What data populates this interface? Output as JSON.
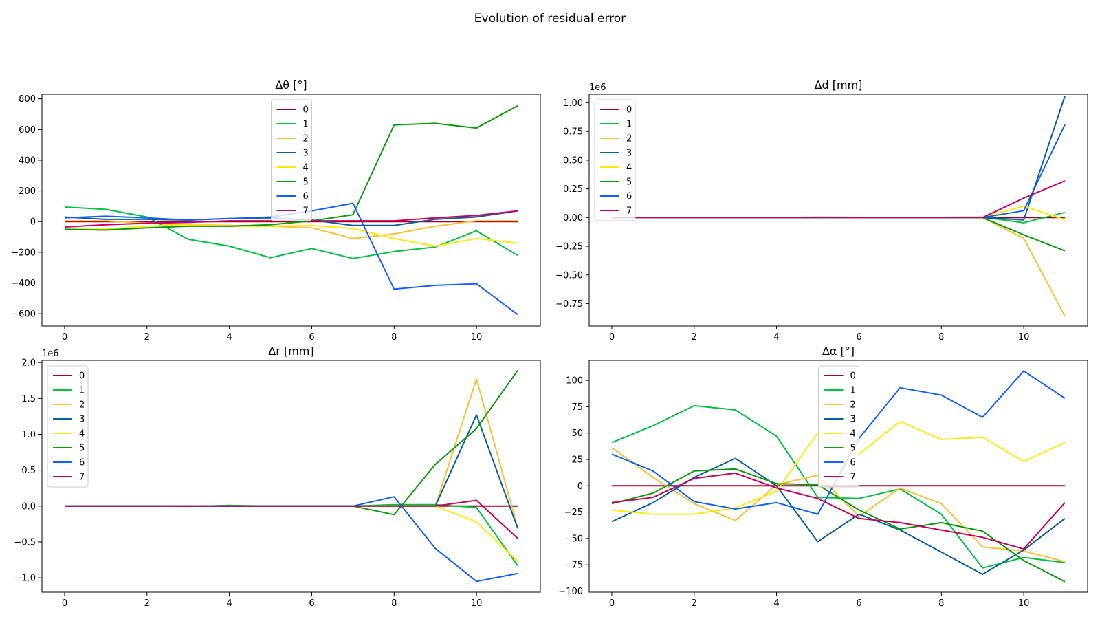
{
  "figure": {
    "title": "Evolution of residual error"
  },
  "series_colors": [
    "#a50026",
    "#00c140",
    "#f8c032",
    "#0a5f9e",
    "#ffe80a",
    "#0d9a0d",
    "#1060ff",
    "#c8005a"
  ],
  "chart_data": [
    {
      "type": "line",
      "title": "Δθ [°]",
      "xlabel": "",
      "ylabel": "",
      "x": [
        0,
        1,
        2,
        3,
        4,
        5,
        6,
        7,
        8,
        9,
        10,
        11
      ],
      "xlim": [
        -0.55,
        11.55
      ],
      "ylim": [
        -680,
        830
      ],
      "xticks": [
        0,
        2,
        4,
        6,
        8,
        10
      ],
      "xtick_labels": [
        "0",
        "2",
        "4",
        "6",
        "8",
        "10"
      ],
      "yticks": [
        800,
        600,
        400,
        200,
        0,
        -200,
        -400,
        -600
      ],
      "ytick_labels": [
        "800",
        "600",
        "400",
        "200",
        "0",
        "−200",
        "−400",
        "−600"
      ],
      "offset_text": "",
      "grid": false,
      "legend_position": "upper-center",
      "series": [
        {
          "name": "0",
          "values": [
            0,
            0,
            0,
            0,
            0,
            0,
            0,
            0,
            0,
            0,
            0,
            0
          ]
        },
        {
          "name": "1",
          "values": [
            95,
            80,
            30,
            -115,
            -160,
            -235,
            -175,
            -240,
            -195,
            -165,
            -60,
            -220
          ]
        },
        {
          "name": "2",
          "values": [
            5,
            5,
            -10,
            -20,
            -25,
            -30,
            -40,
            -110,
            -80,
            -30,
            5,
            5
          ]
        },
        {
          "name": "3",
          "values": [
            30,
            15,
            15,
            10,
            20,
            25,
            10,
            -25,
            -25,
            15,
            30,
            70
          ]
        },
        {
          "name": "4",
          "values": [
            -50,
            -50,
            -30,
            -20,
            -30,
            -30,
            -25,
            -45,
            -110,
            -160,
            -110,
            -140
          ]
        },
        {
          "name": "5",
          "values": [
            -50,
            -55,
            -40,
            -30,
            -30,
            -20,
            5,
            45,
            630,
            640,
            610,
            755
          ]
        },
        {
          "name": "6",
          "values": [
            25,
            35,
            25,
            10,
            20,
            30,
            70,
            120,
            -440,
            -415,
            -405,
            -605
          ]
        },
        {
          "name": "7",
          "values": [
            -35,
            -20,
            -10,
            -5,
            5,
            5,
            5,
            5,
            5,
            25,
            40,
            70
          ]
        }
      ]
    },
    {
      "type": "line",
      "title": "Δd [mm]",
      "xlabel": "",
      "ylabel": "",
      "x": [
        0,
        1,
        2,
        3,
        4,
        5,
        6,
        7,
        8,
        9,
        10,
        11
      ],
      "xlim": [
        -0.55,
        11.55
      ],
      "ylim": [
        -0.945,
        1.075
      ],
      "xticks": [
        0,
        2,
        4,
        6,
        8,
        10
      ],
      "xtick_labels": [
        "0",
        "2",
        "4",
        "6",
        "8",
        "10"
      ],
      "yticks": [
        1.0,
        0.75,
        0.5,
        0.25,
        0.0,
        -0.25,
        -0.5,
        -0.75
      ],
      "ytick_labels": [
        "1.00",
        "0.75",
        "0.50",
        "0.25",
        "0.00",
        "−0.25",
        "−0.50",
        "−0.75"
      ],
      "offset_text": "1e6",
      "grid": false,
      "legend_position": "upper-left",
      "series": [
        {
          "name": "0",
          "values": [
            0,
            0,
            0,
            0,
            0,
            0,
            0,
            0,
            0,
            0,
            0,
            0
          ]
        },
        {
          "name": "1",
          "values": [
            0,
            0,
            0,
            0,
            0,
            0.003,
            0.002,
            0.001,
            0.002,
            0.004,
            -0.045,
            0.045
          ]
        },
        {
          "name": "2",
          "values": [
            0,
            0,
            0,
            0,
            0,
            0,
            0,
            0,
            0,
            0,
            -0.18,
            -0.86
          ]
        },
        {
          "name": "3",
          "values": [
            0,
            0,
            0,
            0,
            0,
            0,
            0,
            0,
            0,
            0,
            -0.02,
            1.06
          ]
        },
        {
          "name": "4",
          "values": [
            0,
            0,
            0,
            0,
            0,
            0,
            0,
            0,
            0,
            0,
            0.1,
            -0.02
          ]
        },
        {
          "name": "5",
          "values": [
            0,
            0,
            0,
            0,
            0,
            0,
            0,
            0,
            0,
            0,
            -0.15,
            -0.29
          ]
        },
        {
          "name": "6",
          "values": [
            0,
            0,
            0,
            0,
            0,
            0,
            0,
            0,
            0,
            0,
            0.06,
            0.81
          ]
        },
        {
          "name": "7",
          "values": [
            0,
            0,
            0,
            0,
            0,
            0,
            0,
            0,
            0,
            0,
            0.17,
            0.32
          ]
        }
      ]
    },
    {
      "type": "line",
      "title": "Δr [mm]",
      "xlabel": "",
      "ylabel": "",
      "x": [
        0,
        1,
        2,
        3,
        4,
        5,
        6,
        7,
        8,
        9,
        10,
        11
      ],
      "xlim": [
        -0.55,
        11.55
      ],
      "ylim": [
        -1.2,
        2.03
      ],
      "xticks": [
        0,
        2,
        4,
        6,
        8,
        10
      ],
      "xtick_labels": [
        "0",
        "2",
        "4",
        "6",
        "8",
        "10"
      ],
      "yticks": [
        2.0,
        1.5,
        1.0,
        0.5,
        0.0,
        -0.5,
        -1.0
      ],
      "ytick_labels": [
        "2.0",
        "1.5",
        "1.0",
        "0.5",
        "0.0",
        "−0.5",
        "−1.0"
      ],
      "offset_text": "1e6",
      "grid": false,
      "legend_position": "upper-left",
      "series": [
        {
          "name": "0",
          "values": [
            0,
            0,
            0,
            0,
            0,
            0,
            0,
            0,
            0,
            0,
            0,
            0
          ]
        },
        {
          "name": "1",
          "values": [
            0,
            0,
            0,
            -0.005,
            0.01,
            0,
            0,
            0,
            0.02,
            0.02,
            -0.02,
            -0.83
          ]
        },
        {
          "name": "2",
          "values": [
            0,
            0,
            0,
            0,
            0,
            0,
            0,
            0,
            0,
            0,
            1.77,
            -0.3
          ]
        },
        {
          "name": "3",
          "values": [
            0,
            0,
            0,
            0,
            0,
            0,
            0,
            0,
            0,
            0,
            1.27,
            -0.31
          ]
        },
        {
          "name": "4",
          "values": [
            0,
            0,
            0,
            0,
            0,
            0,
            0,
            0,
            0,
            0,
            -0.22,
            -0.77
          ]
        },
        {
          "name": "5",
          "values": [
            0,
            0,
            0,
            0,
            0,
            0,
            0,
            0,
            -0.12,
            0.58,
            1.08,
            1.89
          ]
        },
        {
          "name": "6",
          "values": [
            0,
            0,
            0,
            0,
            0,
            0,
            0,
            0,
            0.13,
            -0.59,
            -1.05,
            -0.94
          ]
        },
        {
          "name": "7",
          "values": [
            0,
            0,
            0,
            0,
            0,
            0,
            0,
            0,
            0,
            0,
            0.08,
            -0.45
          ]
        }
      ]
    },
    {
      "type": "line",
      "title": "Δα [°]",
      "xlabel": "",
      "ylabel": "",
      "x": [
        0,
        1,
        2,
        3,
        4,
        5,
        6,
        7,
        8,
        9,
        10,
        11
      ],
      "xlim": [
        -0.55,
        11.55
      ],
      "ylim": [
        -101,
        119
      ],
      "xticks": [
        0,
        2,
        4,
        6,
        8,
        10
      ],
      "xtick_labels": [
        "0",
        "2",
        "4",
        "6",
        "8",
        "10"
      ],
      "yticks": [
        100,
        75,
        50,
        25,
        0,
        -25,
        -50,
        -75,
        -100
      ],
      "ytick_labels": [
        "100",
        "75",
        "50",
        "25",
        "0",
        "−25",
        "−50",
        "−75",
        "−100"
      ],
      "offset_text": "",
      "grid": false,
      "legend_position": "upper-center",
      "series": [
        {
          "name": "0",
          "values": [
            0,
            0,
            0,
            0,
            0,
            0,
            0,
            0,
            0,
            0,
            0,
            0
          ]
        },
        {
          "name": "1",
          "values": [
            41,
            57,
            76,
            72,
            47,
            -11,
            -12,
            -3,
            -27,
            -78,
            -68,
            -73
          ]
        },
        {
          "name": "2",
          "values": [
            36,
            8,
            -17,
            -33,
            1,
            10,
            -29,
            -2,
            -17,
            -58,
            -62,
            -72
          ]
        },
        {
          "name": "3",
          "values": [
            -34,
            -16,
            8,
            26,
            0,
            -53,
            -27,
            -42,
            -63,
            -84,
            -61,
            -31
          ]
        },
        {
          "name": "4",
          "values": [
            -23,
            -27,
            -27,
            -21,
            -5,
            50,
            30,
            61,
            44,
            46,
            23,
            41
          ]
        },
        {
          "name": "5",
          "values": [
            -17,
            -7,
            14,
            16,
            2,
            1,
            -23,
            -41,
            -35,
            -43,
            -71,
            -91
          ]
        },
        {
          "name": "6",
          "values": [
            30,
            14,
            -15,
            -22,
            -16,
            -27,
            45,
            93,
            86,
            65,
            109,
            83
          ]
        },
        {
          "name": "7",
          "values": [
            -16,
            -11,
            7,
            12,
            -2,
            -12,
            -31,
            -35,
            -42,
            -49,
            -60,
            -16
          ]
        }
      ]
    }
  ]
}
